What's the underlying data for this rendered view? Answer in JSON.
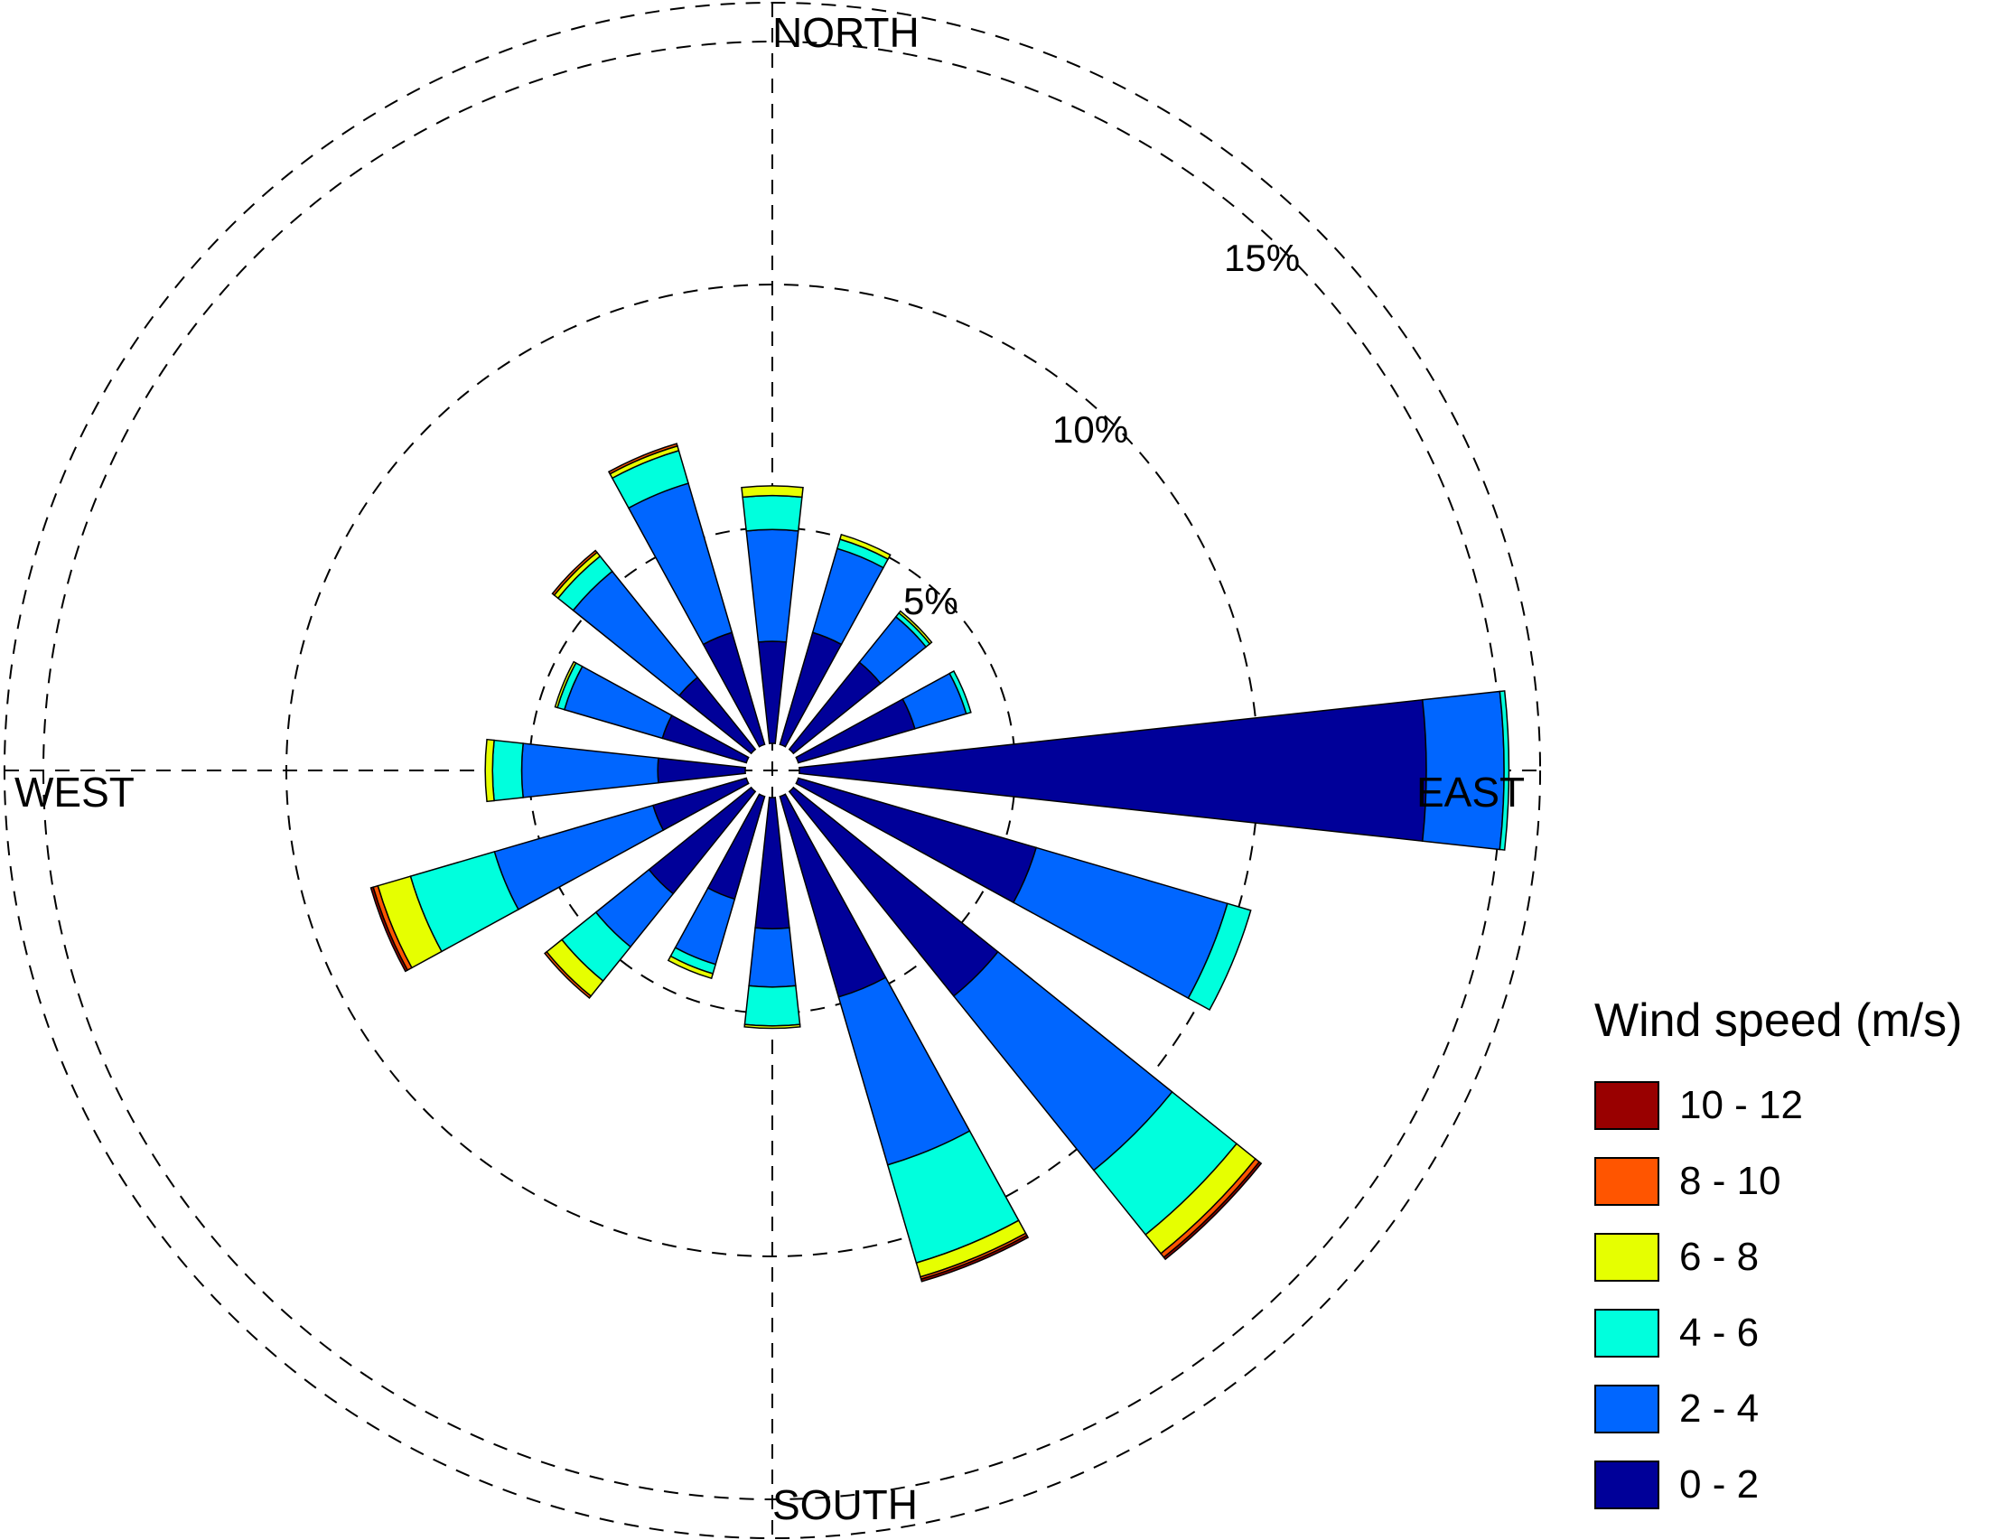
{
  "chart_data": {
    "type": "wind-rose",
    "title": "",
    "legend": {
      "title": "Wind speed (m/s)",
      "position": "bottom-right",
      "bins": [
        {
          "label": "10 - 12",
          "color": "#990000"
        },
        {
          "label": "8 - 10",
          "color": "#FF5500"
        },
        {
          "label": "6 - 8",
          "color": "#E6FF00"
        },
        {
          "label": "4 - 6",
          "color": "#00FFDD"
        },
        {
          "label": "2 - 4",
          "color": "#0066FF"
        },
        {
          "label": "0 - 2",
          "color": "#000099"
        }
      ]
    },
    "directions": {
      "north": "NORTH",
      "east": "EAST",
      "south": "SOUTH",
      "west": "WEST"
    },
    "rings": [
      {
        "value": 5,
        "label": "5%"
      },
      {
        "value": 10,
        "label": "10%"
      },
      {
        "value": 15,
        "label": "15%"
      }
    ],
    "bin_order": [
      "0 - 2",
      "2 - 4",
      "4 - 6",
      "6 - 8",
      "8 - 10",
      "10 - 12"
    ],
    "sectors": [
      {
        "direction": 0,
        "values": [
          2.1,
          2.3,
          0.7,
          0.2,
          0,
          0
        ]
      },
      {
        "direction": 22.5,
        "values": [
          2.4,
          1.8,
          0.2,
          0.1,
          0,
          0
        ]
      },
      {
        "direction": 45,
        "values": [
          2.3,
          1.2,
          0.1,
          0.05,
          0,
          0
        ]
      },
      {
        "direction": 67.5,
        "values": [
          2.5,
          1.1,
          0.1,
          0,
          0,
          0
        ]
      },
      {
        "direction": 90,
        "values": [
          12.9,
          1.6,
          0.1,
          0,
          0,
          0
        ]
      },
      {
        "direction": 112.5,
        "values": [
          5.1,
          4.1,
          0.5,
          0,
          0,
          0
        ]
      },
      {
        "direction": 135,
        "values": [
          5.4,
          4.6,
          1.7,
          0.5,
          0.1,
          0.05
        ]
      },
      {
        "direction": 157.5,
        "values": [
          4.3,
          3.6,
          2.1,
          0.3,
          0.05,
          0.05
        ]
      },
      {
        "direction": 180,
        "values": [
          2.7,
          1.2,
          0.8,
          0.05,
          0,
          0
        ]
      },
      {
        "direction": 202.5,
        "values": [
          2.2,
          1.4,
          0.2,
          0.1,
          0,
          0
        ]
      },
      {
        "direction": 225,
        "values": [
          2.7,
          1.4,
          0.9,
          0.4,
          0.05,
          0
        ]
      },
      {
        "direction": 247.5,
        "values": [
          2.0,
          3.4,
          1.8,
          0.7,
          0.1,
          0.05
        ]
      },
      {
        "direction": 270,
        "values": [
          1.8,
          2.8,
          0.6,
          0.15,
          0,
          0
        ]
      },
      {
        "direction": 292.5,
        "values": [
          1.8,
          2.1,
          0.15,
          0.05,
          0,
          0
        ]
      },
      {
        "direction": 315,
        "values": [
          1.9,
          2.8,
          0.4,
          0.1,
          0.05,
          0
        ]
      },
      {
        "direction": 337.5,
        "values": [
          2.4,
          3.2,
          0.7,
          0.1,
          0.05,
          0
        ]
      }
    ]
  }
}
